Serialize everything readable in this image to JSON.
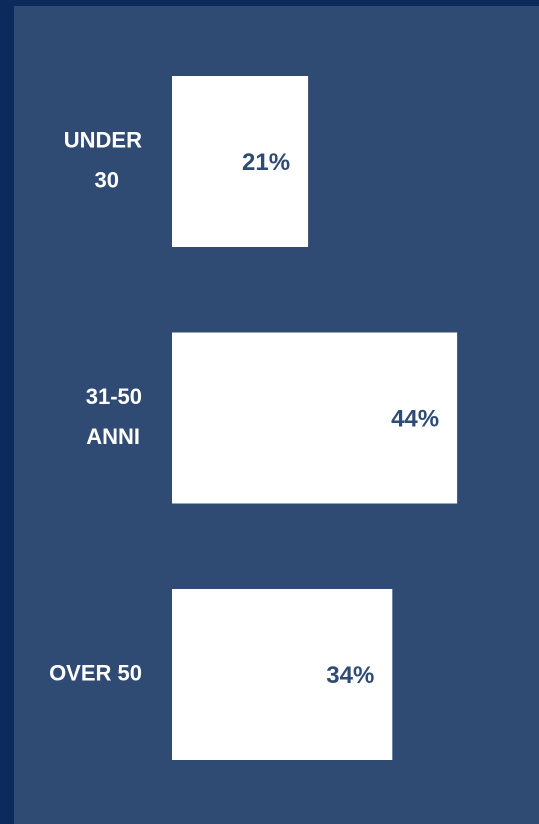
{
  "chart_data": {
    "type": "bar",
    "orientation": "horizontal",
    "categories": [
      "UNDER 30",
      "31-50 ANNI",
      "OVER 50"
    ],
    "values": [
      21,
      44,
      34
    ],
    "value_labels": [
      "21%",
      "44%",
      "34%"
    ],
    "color": "#ffffff"
  }
}
